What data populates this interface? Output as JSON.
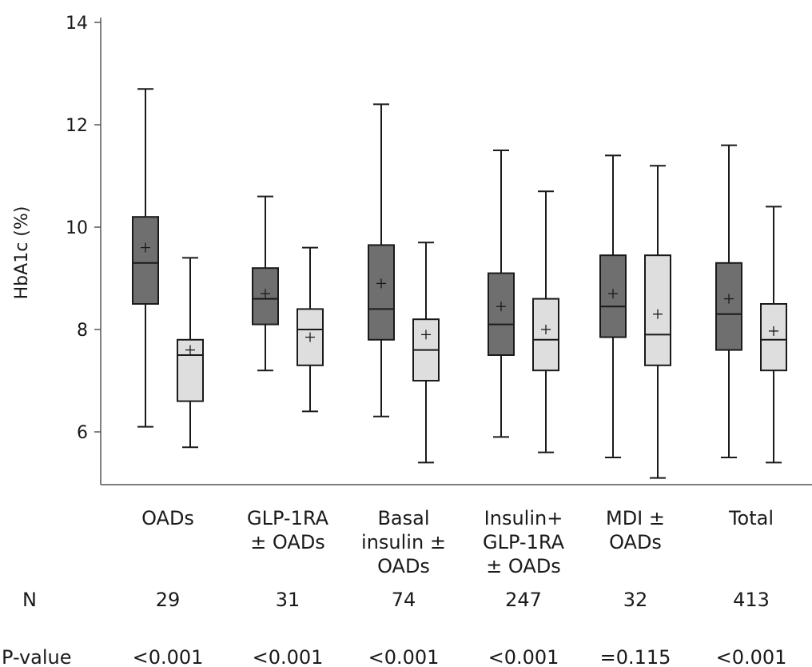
{
  "chart_data": {
    "type": "box",
    "ylabel": "HbA1c (%)",
    "ylim": [
      5,
      14
    ],
    "yticks": [
      "6",
      "8",
      "10",
      "12",
      "14"
    ],
    "grid": false,
    "legend": "none",
    "colors": {
      "dark_box": "#6f6f6f",
      "light_box": "#dedede",
      "stroke": "#1a1a1a"
    },
    "categories": [
      {
        "label_lines": [
          "OADs"
        ],
        "n": "29",
        "p_value": "<0.001",
        "boxes": [
          {
            "shade": "dark",
            "min": 6.1,
            "q1": 8.5,
            "median": 9.3,
            "q3": 10.2,
            "max": 12.7,
            "mean": 9.6
          },
          {
            "shade": "light",
            "min": 5.7,
            "q1": 6.6,
            "median": 7.5,
            "q3": 7.8,
            "max": 9.4,
            "mean": 7.6
          }
        ]
      },
      {
        "label_lines": [
          "GLP-1RA",
          "± OADs"
        ],
        "n": "31",
        "p_value": "<0.001",
        "boxes": [
          {
            "shade": "dark",
            "min": 7.2,
            "q1": 8.1,
            "median": 8.6,
            "q3": 9.2,
            "max": 10.6,
            "mean": 8.7
          },
          {
            "shade": "light",
            "min": 6.4,
            "q1": 7.3,
            "median": 8.0,
            "q3": 8.4,
            "max": 9.6,
            "mean": 7.85
          }
        ]
      },
      {
        "label_lines": [
          "Basal",
          "insulin ±",
          "OADs"
        ],
        "n": "74",
        "p_value": "<0.001",
        "boxes": [
          {
            "shade": "dark",
            "min": 6.3,
            "q1": 7.8,
            "median": 8.4,
            "q3": 9.65,
            "max": 12.4,
            "mean": 8.9
          },
          {
            "shade": "light",
            "min": 5.4,
            "q1": 7.0,
            "median": 7.6,
            "q3": 8.2,
            "max": 9.7,
            "mean": 7.9
          }
        ]
      },
      {
        "label_lines": [
          "Insulin+",
          "GLP-1RA",
          "± OADs"
        ],
        "n": "247",
        "p_value": "<0.001",
        "boxes": [
          {
            "shade": "dark",
            "min": 5.9,
            "q1": 7.5,
            "median": 8.1,
            "q3": 9.1,
            "max": 11.5,
            "mean": 8.45
          },
          {
            "shade": "light",
            "min": 5.6,
            "q1": 7.2,
            "median": 7.8,
            "q3": 8.6,
            "max": 10.7,
            "mean": 8.0
          }
        ]
      },
      {
        "label_lines": [
          "MDI ±",
          "OADs"
        ],
        "n": "32",
        "p_value": "=0.115",
        "boxes": [
          {
            "shade": "dark",
            "min": 5.5,
            "q1": 7.85,
            "median": 8.45,
            "q3": 9.45,
            "max": 11.4,
            "mean": 8.7
          },
          {
            "shade": "light",
            "min": 5.1,
            "q1": 7.3,
            "median": 7.9,
            "q3": 9.45,
            "max": 11.2,
            "mean": 8.3
          }
        ]
      },
      {
        "label_lines": [
          "Total"
        ],
        "n": "413",
        "p_value": "<0.001",
        "boxes": [
          {
            "shade": "dark",
            "min": 5.5,
            "q1": 7.6,
            "median": 8.3,
            "q3": 9.3,
            "max": 11.6,
            "mean": 8.6
          },
          {
            "shade": "light",
            "min": 5.4,
            "q1": 7.2,
            "median": 7.8,
            "q3": 8.5,
            "max": 10.4,
            "mean": 7.97
          }
        ]
      }
    ],
    "row_labels": {
      "n": "N",
      "p_value": "P-value"
    }
  }
}
